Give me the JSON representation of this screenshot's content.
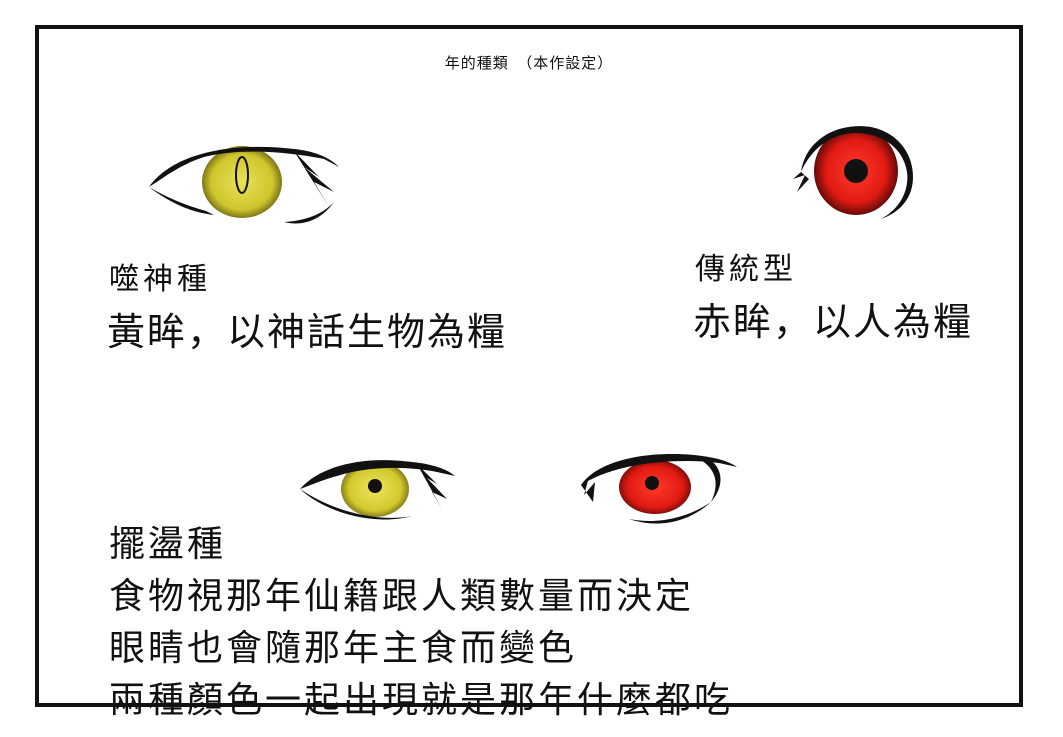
{
  "title": "年的種類　（本作設定）",
  "devourer": {
    "name": "噬神種",
    "desc": "黃眸，以神話生物為糧"
  },
  "traditional": {
    "name": "傳統型",
    "desc": "赤眸，以人為糧"
  },
  "swing": {
    "name": "擺盪種",
    "lines": [
      "食物視那年仙籍跟人類數量而決定",
      "眼睛也會隨那年主食而變色",
      "兩種顏色一起出現就是那年什麼都吃"
    ]
  },
  "colors": {
    "yellow_iris": "#d9d23a",
    "red_iris": "#e01a12",
    "ink": "#111111"
  }
}
